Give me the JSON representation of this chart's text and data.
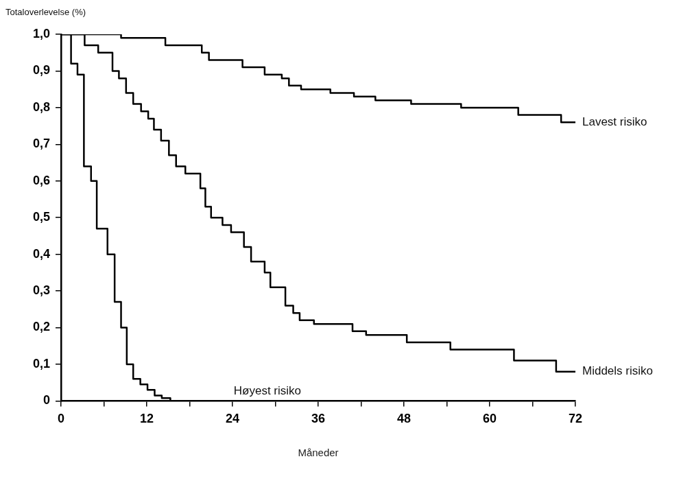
{
  "chart_data": {
    "type": "step",
    "xlabel": "Måneder",
    "ylabel": "Totaloverlevelse (%)",
    "xlim": [
      0,
      72
    ],
    "ylim": [
      0,
      1
    ],
    "xticks": [
      0,
      {
        "value": 6,
        "label": null
      },
      12,
      {
        "value": 18,
        "label": null
      },
      24,
      {
        "value": 30,
        "label": null
      },
      36,
      {
        "value": 42,
        "label": null
      },
      48,
      {
        "value": 54,
        "label": null
      },
      60,
      {
        "value": 66,
        "label": null
      },
      72
    ],
    "yticks": [
      0,
      {
        "value": 0.1,
        "label": "0,1"
      },
      {
        "value": 0.2,
        "label": "0,2"
      },
      {
        "value": 0.3,
        "label": "0,3"
      },
      {
        "value": 0.4,
        "label": "0,4"
      },
      {
        "value": 0.5,
        "label": "0,5"
      },
      {
        "value": 0.6,
        "label": "0,6"
      },
      {
        "value": 0.7,
        "label": "0,7"
      },
      {
        "value": 0.8,
        "label": "0,8"
      },
      {
        "value": 0.9,
        "label": "0,9"
      },
      {
        "value": 1,
        "label": "1,0"
      }
    ],
    "marker": "none",
    "series": [
      {
        "name": "Lavest risiko",
        "color": "#000000",
        "x": [
          0,
          8.4,
          14.6,
          19.7,
          20.7,
          25.4,
          28.5,
          30.9,
          31.9,
          33.6,
          37.7,
          41,
          44,
          49,
          56,
          64,
          70,
          72
        ],
        "values": [
          1,
          0.99,
          0.97,
          0.95,
          0.93,
          0.91,
          0.89,
          0.88,
          0.86,
          0.85,
          0.84,
          0.83,
          0.82,
          0.81,
          0.8,
          0.78,
          0.76,
          0.76
        ]
      },
      {
        "name": "Middels risiko",
        "color": "#000000",
        "x": [
          0,
          3.3,
          5.2,
          7.2,
          8.1,
          9.1,
          10.1,
          11.2,
          12.2,
          13.0,
          14.0,
          15.1,
          16.1,
          17.4,
          19.5,
          20.2,
          21.0,
          22.6,
          23.8,
          25.6,
          26.6,
          28.5,
          29.3,
          31.4,
          32.5,
          33.4,
          35.4,
          38.6,
          40.8,
          42.7,
          48.4,
          54.5,
          63.4,
          69.3,
          72
        ],
        "values": [
          1,
          0.97,
          0.95,
          0.9,
          0.88,
          0.84,
          0.81,
          0.79,
          0.77,
          0.74,
          0.71,
          0.67,
          0.64,
          0.62,
          0.58,
          0.53,
          0.5,
          0.48,
          0.46,
          0.42,
          0.38,
          0.35,
          0.31,
          0.26,
          0.24,
          0.22,
          0.21,
          0.21,
          0.19,
          0.18,
          0.16,
          0.14,
          0.11,
          0.08,
          0.08
        ]
      },
      {
        "name": "Høyest risiko",
        "color": "#000000",
        "x": [
          0,
          1.4,
          2.3,
          3.2,
          4.2,
          5.0,
          6.5,
          7.5,
          8.4,
          9.2,
          10.1,
          11.1,
          12.1,
          13.1,
          14.1,
          15.3,
          19.2
        ],
        "values": [
          1,
          0.92,
          0.89,
          0.64,
          0.6,
          0.47,
          0.4,
          0.27,
          0.2,
          0.1,
          0.06,
          0.045,
          0.03,
          0.015,
          0.008,
          0,
          0
        ]
      }
    ]
  }
}
